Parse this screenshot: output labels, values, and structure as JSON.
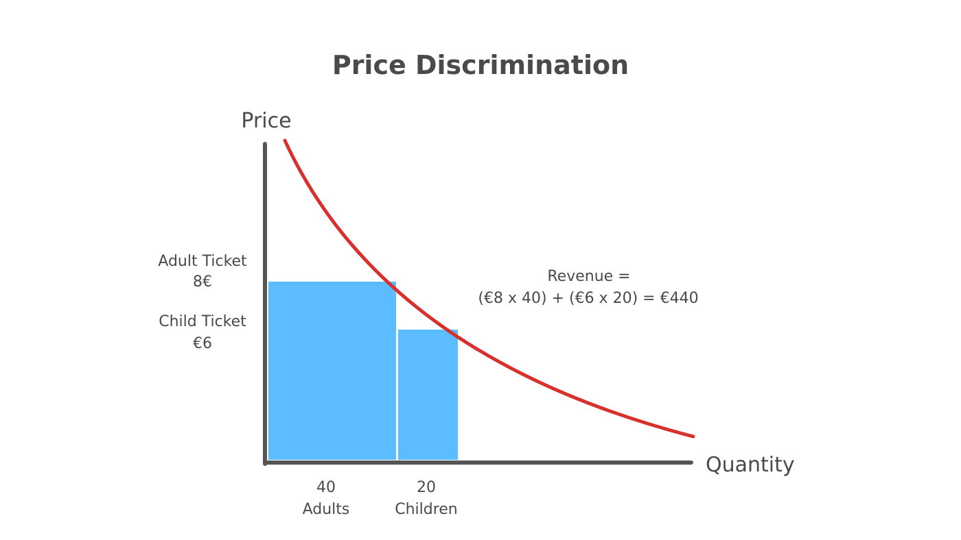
{
  "title": "Price Discrimination",
  "axes": {
    "y_label": "Price",
    "x_label": "Quantity"
  },
  "price_levels": {
    "adult": {
      "name": "Adult Ticket",
      "value": "8€"
    },
    "child": {
      "name": "Child Ticket",
      "value": "€6"
    }
  },
  "quantities": {
    "adults": {
      "count": "40",
      "name": "Adults"
    },
    "children": {
      "count": "20",
      "name": "Children"
    }
  },
  "revenue": {
    "line1": "Revenue =",
    "line2": "(€8 x 40) + (€6 x 20) = €440"
  },
  "colors": {
    "axis": "#555555",
    "demand_curve": "#d8302c",
    "revenue_area": "#5bbdff",
    "text": "#4a4a4a"
  }
}
